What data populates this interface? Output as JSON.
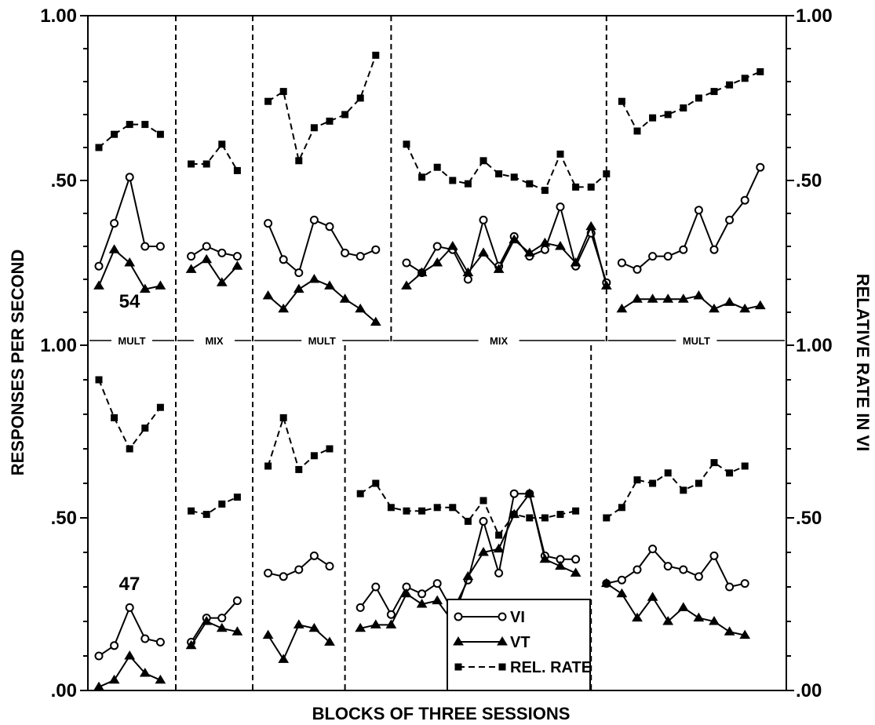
{
  "chart_data": {
    "type": "line",
    "xlabel": "BLOCKS OF THREE SESSIONS",
    "ylabel_left": "RESPONSES PER SECOND",
    "ylabel_right": "RELATIVE RATE IN VI",
    "ylim": [
      0,
      1
    ],
    "legend": {
      "position": "bottom-center",
      "entries": [
        {
          "label": "VI",
          "marker": "circle",
          "style": "solid"
        },
        {
          "label": "VT",
          "marker": "triangle",
          "style": "solid"
        },
        {
          "label": "REL. RATE",
          "marker": "square",
          "style": "dashed"
        }
      ]
    },
    "panels": [
      {
        "subject": "54",
        "yticks": [
          {
            "value": 0.5,
            "left": ".50",
            "right": ".50"
          },
          {
            "value": 1.0,
            "left": "1.00",
            "right": "1.00"
          }
        ],
        "phases": [
          {
            "label": "MULT",
            "start_block": 0,
            "end_block": 5,
            "VI": [
              0.24,
              0.37,
              0.51,
              0.3,
              0.3
            ],
            "VT": [
              0.18,
              0.29,
              0.25,
              0.17,
              0.18
            ],
            "REL_RATE": [
              0.6,
              0.64,
              0.67,
              0.67,
              0.64
            ]
          },
          {
            "label": "MIX",
            "start_block": 6,
            "end_block": 10,
            "VI": [
              0.27,
              0.3,
              0.28,
              0.27
            ],
            "VT": [
              0.23,
              0.26,
              0.19,
              0.24
            ],
            "REL_RATE": [
              0.55,
              0.55,
              0.61,
              0.53
            ]
          },
          {
            "label": "MULT",
            "start_block": 11,
            "end_block": 19,
            "VI": [
              0.37,
              0.26,
              0.22,
              0.38,
              0.36,
              0.28,
              0.27,
              0.29
            ],
            "VT": [
              0.15,
              0.11,
              0.17,
              0.2,
              0.18,
              0.14,
              0.11,
              0.07
            ],
            "REL_RATE": [
              0.74,
              0.77,
              0.56,
              0.66,
              0.68,
              0.7,
              0.75,
              0.88
            ]
          },
          {
            "label": "MIX",
            "start_block": 20,
            "end_block": 33,
            "VI": [
              0.25,
              0.22,
              0.3,
              0.29,
              0.2,
              0.38,
              0.24,
              0.33,
              0.27,
              0.29,
              0.42,
              0.24,
              0.34,
              0.19
            ],
            "VT": [
              0.18,
              0.22,
              0.25,
              0.3,
              0.22,
              0.28,
              0.23,
              0.32,
              0.28,
              0.31,
              0.3,
              0.25,
              0.36,
              0.18
            ],
            "REL_RATE": [
              0.61,
              0.51,
              0.54,
              0.5,
              0.49,
              0.56,
              0.52,
              0.51,
              0.49,
              0.47,
              0.58,
              0.48,
              0.48,
              0.52
            ]
          },
          {
            "label": "MULT",
            "start_block": 34,
            "end_block": 44,
            "VI": [
              0.25,
              0.23,
              0.27,
              0.27,
              0.29,
              0.41,
              0.29,
              0.38,
              0.44,
              0.54
            ],
            "VT": [
              0.11,
              0.14,
              0.14,
              0.14,
              0.14,
              0.15,
              0.11,
              0.13,
              0.11,
              0.12
            ],
            "REL_RATE": [
              0.74,
              0.65,
              0.69,
              0.7,
              0.72,
              0.75,
              0.77,
              0.79,
              0.81,
              0.83
            ]
          }
        ]
      },
      {
        "subject": "47",
        "yticks": [
          {
            "value": 0.0,
            "left": ".00",
            "right": ".00"
          },
          {
            "value": 0.5,
            "left": ".50",
            "right": ".50"
          },
          {
            "value": 1.0,
            "left": "1.00",
            "right": "1.00"
          }
        ],
        "phases": [
          {
            "label": "",
            "start_block": 0,
            "end_block": 5,
            "VI": [
              0.1,
              0.13,
              0.24,
              0.15,
              0.14
            ],
            "VT": [
              0.01,
              0.03,
              0.1,
              0.05,
              0.03
            ],
            "REL_RATE": [
              0.9,
              0.79,
              0.7,
              0.76,
              0.82
            ]
          },
          {
            "label": "",
            "start_block": 6,
            "end_block": 10,
            "VI": [
              0.14,
              0.21,
              0.21,
              0.26
            ],
            "VT": [
              0.13,
              0.2,
              0.18,
              0.17
            ],
            "REL_RATE": [
              0.52,
              0.51,
              0.54,
              0.56
            ]
          },
          {
            "label": "",
            "start_block": 11,
            "end_block": 16,
            "VI": [
              0.34,
              0.33,
              0.35,
              0.39,
              0.36
            ],
            "VT": [
              0.16,
              0.09,
              0.19,
              0.18,
              0.14
            ],
            "REL_RATE": [
              0.65,
              0.79,
              0.64,
              0.68,
              0.7
            ]
          },
          {
            "label": "",
            "start_block": 17,
            "end_block": 32,
            "VI": [
              0.24,
              0.3,
              0.22,
              0.3,
              0.28,
              0.31,
              0.23,
              0.32,
              0.49,
              0.34,
              0.57,
              0.57,
              0.39,
              0.38,
              0.38
            ],
            "VT": [
              0.18,
              0.19,
              0.19,
              0.28,
              0.25,
              0.26,
              0.2,
              0.33,
              0.4,
              0.41,
              0.51,
              0.57,
              0.38,
              0.36,
              0.34
            ],
            "REL_RATE": [
              0.57,
              0.6,
              0.53,
              0.52,
              0.52,
              0.53,
              0.53,
              0.49,
              0.55,
              0.45,
              0.51,
              0.5,
              0.5,
              0.51,
              0.52
            ]
          },
          {
            "label": "",
            "start_block": 33,
            "end_block": 44,
            "VI": [
              0.31,
              0.32,
              0.35,
              0.41,
              0.36,
              0.35,
              0.33,
              0.39,
              0.3,
              0.31
            ],
            "VT": [
              0.31,
              0.28,
              0.21,
              0.27,
              0.2,
              0.24,
              0.21,
              0.2,
              0.17,
              0.16
            ],
            "REL_RATE": [
              0.5,
              0.53,
              0.61,
              0.6,
              0.63,
              0.58,
              0.6,
              0.66,
              0.63,
              0.65
            ]
          }
        ]
      }
    ]
  }
}
